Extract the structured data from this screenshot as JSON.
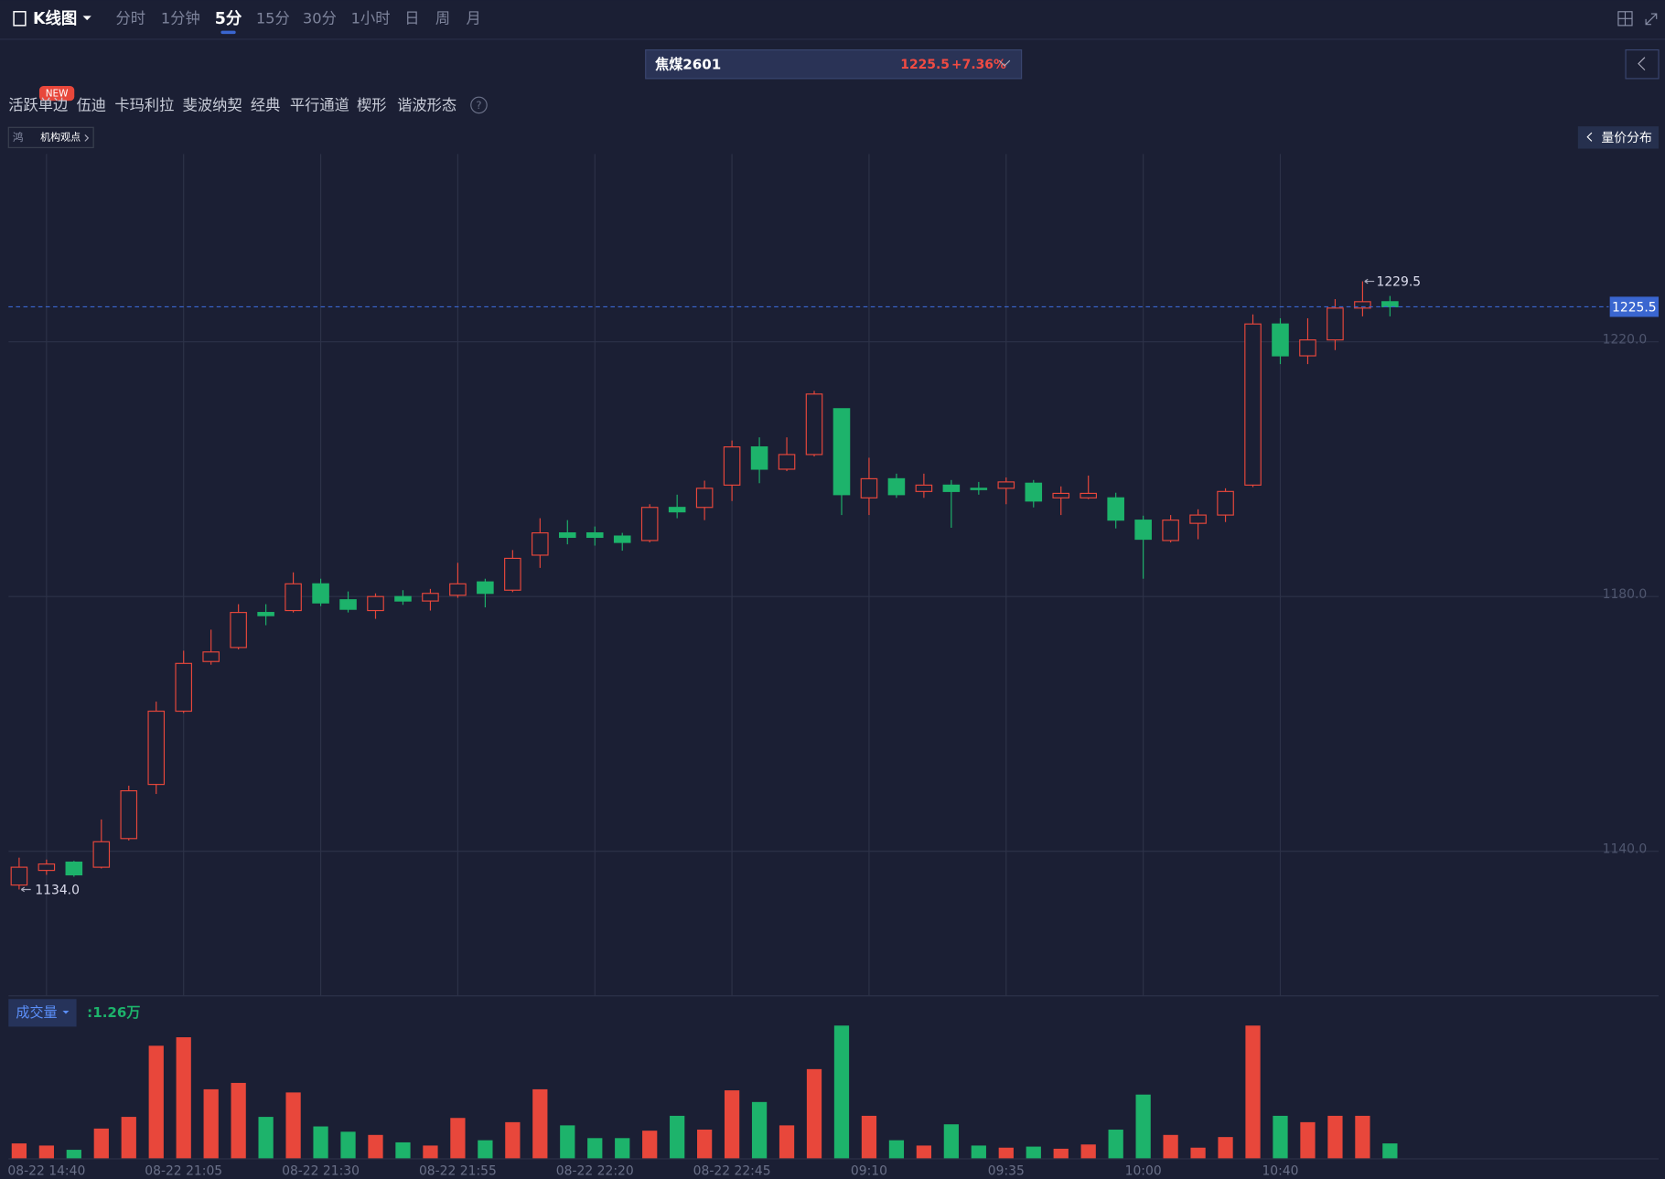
{
  "toolbar": {
    "title": "K线图",
    "tabs": [
      "分时",
      "1分钟",
      "5分",
      "15分",
      "30分",
      "1小时",
      "日",
      "周",
      "月"
    ],
    "active_tab": 2
  },
  "symbol": {
    "name": "焦煤2601",
    "change": "+7.36%"
  },
  "indicators": {
    "items": [
      "活跃单边",
      "伍迪",
      "卡玛利拉",
      "斐波纳契",
      "经典",
      "平行通道",
      "楔形",
      "谐波形态"
    ],
    "badge": "NEW",
    "help": "?"
  },
  "viewpoint": {
    "icon": "鸿",
    "label": "机构观点"
  },
  "distribution_button": "量价分布",
  "chart_data": {
    "type": "candlestick",
    "categories": [
      null,
      "08-22 14:40",
      null,
      null,
      null,
      null,
      "08-22 21:05",
      null,
      null,
      null,
      null,
      "08-22 21:30",
      null,
      null,
      null,
      null,
      "08-22 21:55",
      null,
      null,
      null,
      null,
      "08-22 22:20",
      null,
      null,
      null,
      null,
      "08-22 22:45",
      null,
      null,
      null,
      null,
      "09:10",
      null,
      null,
      null,
      null,
      "09:35",
      null,
      null,
      null,
      null,
      "10:00",
      null,
      null,
      null,
      null,
      "10:40",
      null,
      null,
      null,
      null
    ],
    "open": [
      1134.7,
      1137,
      1138.3,
      1137.5,
      1142,
      1150.5,
      1162,
      1169.8,
      1172,
      1177.5,
      1177.8,
      1182,
      1179.5,
      1177.8,
      1180,
      1179.3,
      1180.2,
      1182.3,
      1181,
      1186.5,
      1190,
      1190,
      1189.5,
      1188.8,
      1194,
      1194,
      1197.5,
      1203.5,
      1200,
      1202.3,
      1209.5,
      1195.5,
      1198.5,
      1196.5,
      1197.5,
      1197,
      1197,
      1197.8,
      1195.5,
      1195.5,
      1195.5,
      1192,
      1188.8,
      1191.5,
      1192.8,
      1197.5,
      1222.8,
      1217.8,
      1220.3,
      1225.3,
      1226.3
    ],
    "high": [
      1139,
      1138.7,
      1138.5,
      1145,
      1150.3,
      1163.5,
      1171.5,
      1174.8,
      1178.8,
      1178.8,
      1183.8,
      1182.8,
      1180.8,
      1180.5,
      1181,
      1181.2,
      1185.3,
      1182.8,
      1187.3,
      1192.3,
      1192,
      1191,
      1190,
      1194.5,
      1196,
      1198.2,
      1204.5,
      1205,
      1205,
      1212.3,
      1209.5,
      1201.8,
      1199.3,
      1199.3,
      1198.3,
      1198,
      1198.7,
      1198.3,
      1197.3,
      1199,
      1196.3,
      1192.7,
      1192.8,
      1193.7,
      1197,
      1224.3,
      1223.7,
      1223.7,
      1226.7,
      1229.5,
      1227.2
    ],
    "low": [
      1134.0,
      1136.3,
      1136,
      1137.3,
      1141.7,
      1149,
      1161.7,
      1169.3,
      1171.7,
      1175.5,
      1177.5,
      1178.5,
      1177.5,
      1176.5,
      1178.7,
      1177.8,
      1179.8,
      1178.3,
      1180.7,
      1184.5,
      1188.2,
      1188,
      1187.2,
      1188.5,
      1192.3,
      1192,
      1195,
      1197.8,
      1199.7,
      1202,
      1192.8,
      1192.8,
      1195.5,
      1195.5,
      1190.8,
      1196,
      1194.5,
      1194,
      1192.8,
      1195.3,
      1190.7,
      1182.8,
      1188.5,
      1189,
      1191.7,
      1197.2,
      1216.5,
      1216.5,
      1218.7,
      1224,
      1224
    ],
    "close": [
      1137.5,
      1138,
      1136.3,
      1141.5,
      1149.5,
      1162,
      1169.5,
      1171.3,
      1177.5,
      1177,
      1182,
      1179,
      1178,
      1180,
      1179.3,
      1180.5,
      1182,
      1180.5,
      1186,
      1190,
      1189.3,
      1189.3,
      1188.5,
      1194,
      1193.3,
      1197,
      1203.5,
      1200,
      1202.3,
      1211.8,
      1196,
      1198.5,
      1196,
      1197.5,
      1196.5,
      1196.8,
      1198,
      1195,
      1196.2,
      1196.2,
      1192,
      1189,
      1192,
      1192.8,
      1196.5,
      1222.8,
      1217.8,
      1220.3,
      1225.3,
      1226.3,
      1225.5
    ],
    "volume": [
      1.26,
      1.08,
      0.72,
      2.52,
      3.51,
      9.54,
      10.26,
      5.85,
      6.39,
      3.51,
      5.58,
      2.7,
      2.25,
      1.98,
      1.35,
      1.08,
      3.42,
      1.53,
      3.06,
      5.85,
      2.79,
      1.71,
      1.71,
      2.34,
      3.6,
      2.43,
      5.76,
      4.77,
      2.79,
      7.56,
      11.25,
      3.6,
      1.53,
      1.08,
      2.88,
      1.08,
      0.9,
      0.99,
      0.81,
      1.17,
      2.43,
      5.4,
      1.98,
      0.9,
      1.8,
      11.25,
      3.6,
      3.06,
      3.6,
      3.6,
      1.26
    ],
    "volume_title": "成交量",
    "volume_readout": ":1.26万",
    "ylim": [
      1117.3,
      1249.5
    ],
    "yticks": [
      {
        "value": 1140,
        "label": "1140.0"
      },
      {
        "value": 1180,
        "label": "1180.0"
      },
      {
        "value": 1220,
        "label": "1220.0"
      }
    ],
    "last_price": 1225.5,
    "max_label": 1229.5,
    "min_label": {
      "value": 1134,
      "label": "1134.0"
    },
    "up_color": "#e8473b",
    "down_color": "#1db36b",
    "last_price_color": "#3a66d0",
    "grid": true
  }
}
